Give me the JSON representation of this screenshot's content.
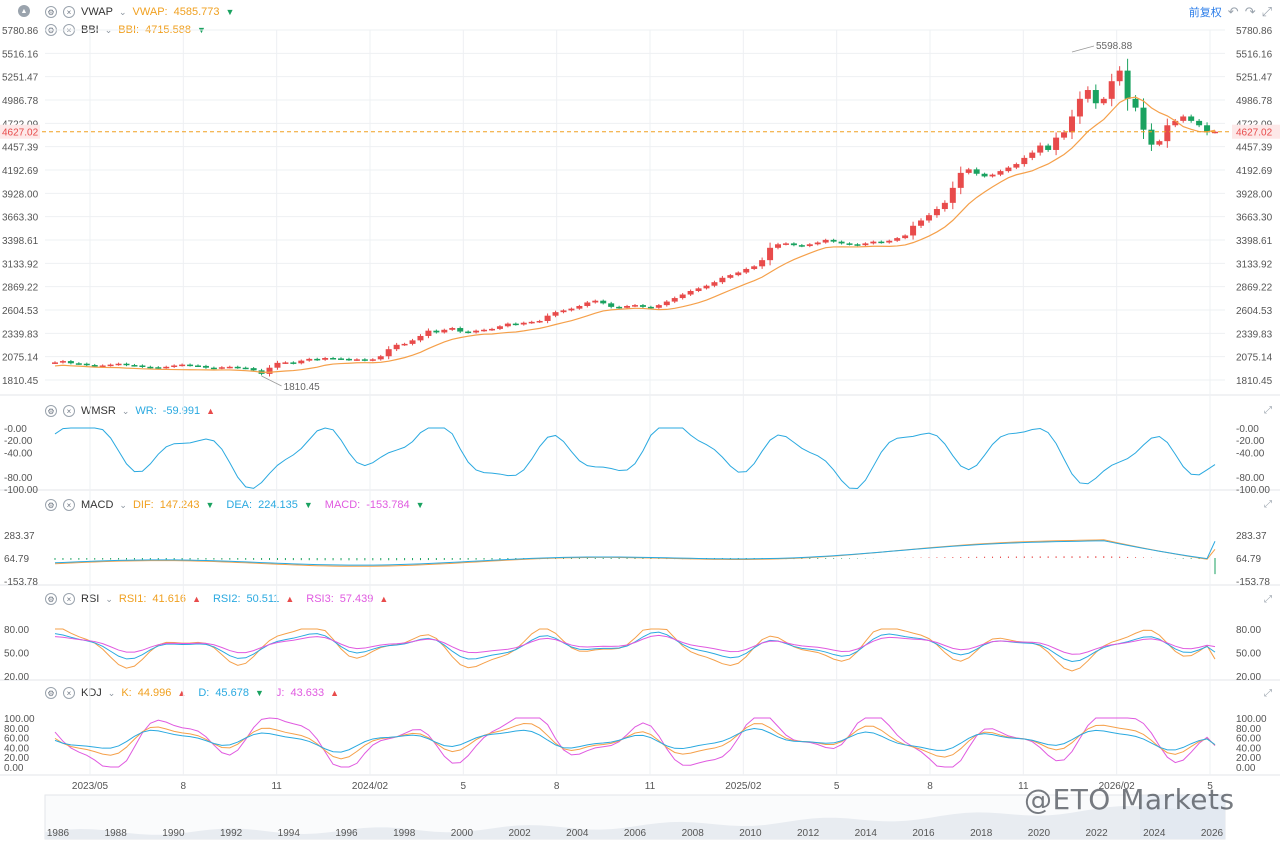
{
  "indicators": {
    "vwap": {
      "name": "VWAP",
      "label": "VWAP:",
      "value": "4585.773",
      "color": "#f0a020"
    },
    "bbi": {
      "name": "BBI",
      "label": "BBI:",
      "value": "4715.588",
      "color": "#f0a020"
    },
    "wmsr": {
      "name": "WMSR",
      "label": "WR:",
      "value": "-59.991",
      "color": "#2aa9e0"
    },
    "macd": {
      "name": "MACD",
      "dif_label": "DIF:",
      "dif": "147.243",
      "dea_label": "DEA:",
      "dea": "224.135",
      "macd_label": "MACD:",
      "macd": "-153.784"
    },
    "rsi": {
      "name": "RSI",
      "r1_label": "RSI1:",
      "r1": "41.616",
      "r2_label": "RSI2:",
      "r2": "50.511",
      "r3_label": "RSI3:",
      "r3": "57.439"
    },
    "kdj": {
      "name": "KDJ",
      "k_label": "K:",
      "k": "44.996",
      "d_label": "D:",
      "d": "45.678",
      "j_label": "J:",
      "j": "43.633"
    }
  },
  "toolbar": {
    "adjust_label": "前复权"
  },
  "watermark": "@ETO Markets",
  "chart_data": [
    {
      "type": "candlestick",
      "price_axis_labels": [
        "5780.86",
        "5516.16",
        "5251.47",
        "4986.78",
        "4722.09",
        "4457.39",
        "4192.69",
        "3928.00",
        "3663.30",
        "3398.61",
        "3133.92",
        "2869.22",
        "2604.53",
        "2339.83",
        "2075.14",
        "1810.45"
      ],
      "ylim": [
        1810.45,
        5780.86
      ],
      "current_price": "4627.02",
      "max_label": "5598.88",
      "min_label": "1810.45",
      "time_labels": [
        "2023/05",
        "8",
        "11",
        "2024/02",
        "5",
        "8",
        "11",
        "2025/02",
        "5",
        "8",
        "11",
        "2026/02",
        "5"
      ],
      "closes": [
        2010,
        2025,
        2000,
        1995,
        1980,
        1970,
        1975,
        1985,
        1995,
        1980,
        1975,
        1960,
        1955,
        1950,
        1960,
        1975,
        1985,
        1975,
        1970,
        1950,
        1945,
        1955,
        1960,
        1950,
        1945,
        1920,
        1880,
        1950,
        2005,
        2010,
        2000,
        2030,
        2050,
        2040,
        2060,
        2055,
        2050,
        2040,
        2045,
        2035,
        2045,
        2080,
        2160,
        2210,
        2220,
        2260,
        2310,
        2370,
        2350,
        2380,
        2400,
        2360,
        2350,
        2370,
        2380,
        2390,
        2420,
        2450,
        2440,
        2460,
        2470,
        2480,
        2540,
        2580,
        2600,
        2620,
        2650,
        2690,
        2710,
        2680,
        2640,
        2630,
        2650,
        2660,
        2640,
        2630,
        2660,
        2700,
        2740,
        2780,
        2820,
        2850,
        2880,
        2920,
        2970,
        3000,
        3030,
        3070,
        3100,
        3170,
        3310,
        3350,
        3360,
        3340,
        3330,
        3350,
        3370,
        3400,
        3380,
        3360,
        3350,
        3340,
        3360,
        3380,
        3370,
        3390,
        3420,
        3450,
        3560,
        3620,
        3680,
        3750,
        3820,
        3990,
        4160,
        4200,
        4150,
        4120,
        4140,
        4180,
        4220,
        4260,
        4330,
        4390,
        4470,
        4420,
        4560,
        4620,
        4800,
        5000,
        5100,
        4950,
        5000,
        5200,
        5320,
        5000,
        4900,
        4650,
        4480,
        4520,
        4700,
        4750,
        4800,
        4750,
        4700,
        4620,
        4627
      ],
      "vwap_label_value": "4585.773",
      "bbi_value": "4715.588"
    },
    {
      "type": "line",
      "name": "WMSR",
      "axis_labels": [
        "-0.00",
        "-20.00",
        "-40.00",
        "-80.00",
        "-100.00"
      ],
      "ylim": [
        -100,
        0
      ],
      "last": -59.991
    },
    {
      "type": "bar+line",
      "name": "MACD",
      "axis_labels": [
        "283.37",
        "64.79",
        "-153.78"
      ],
      "ylim": [
        -153.78,
        283.37
      ],
      "dif_last": 147.243,
      "dea_last": 224.135,
      "macd_last": -153.784
    },
    {
      "type": "line",
      "name": "RSI",
      "axis_labels": [
        "80.00",
        "50.00",
        "20.00"
      ],
      "ylim": [
        20,
        80
      ],
      "rsi1_last": 41.616,
      "rsi2_last": 50.511,
      "rsi3_last": 57.439
    },
    {
      "type": "line",
      "name": "KDJ",
      "axis_labels": [
        "100.00",
        "80.00",
        "60.00",
        "40.00",
        "20.00",
        "0.00"
      ],
      "ylim": [
        0,
        100
      ],
      "k_last": 44.996,
      "d_last": 45.678,
      "j_last": 43.633
    },
    {
      "type": "navigator",
      "year_labels": [
        "1986",
        "1988",
        "1990",
        "1992",
        "1994",
        "1996",
        "1998",
        "2000",
        "2002",
        "2004",
        "2006",
        "2008",
        "2010",
        "2012",
        "2014",
        "2016",
        "2018",
        "2020",
        "2022",
        "2024",
        "2026"
      ]
    }
  ],
  "colors": {
    "up": "#e84b4b",
    "down": "#1aa260",
    "orange": "#f5a04a",
    "blue": "#2aa9e0",
    "magenta": "#e05ae0",
    "grid": "#eef0f3"
  }
}
